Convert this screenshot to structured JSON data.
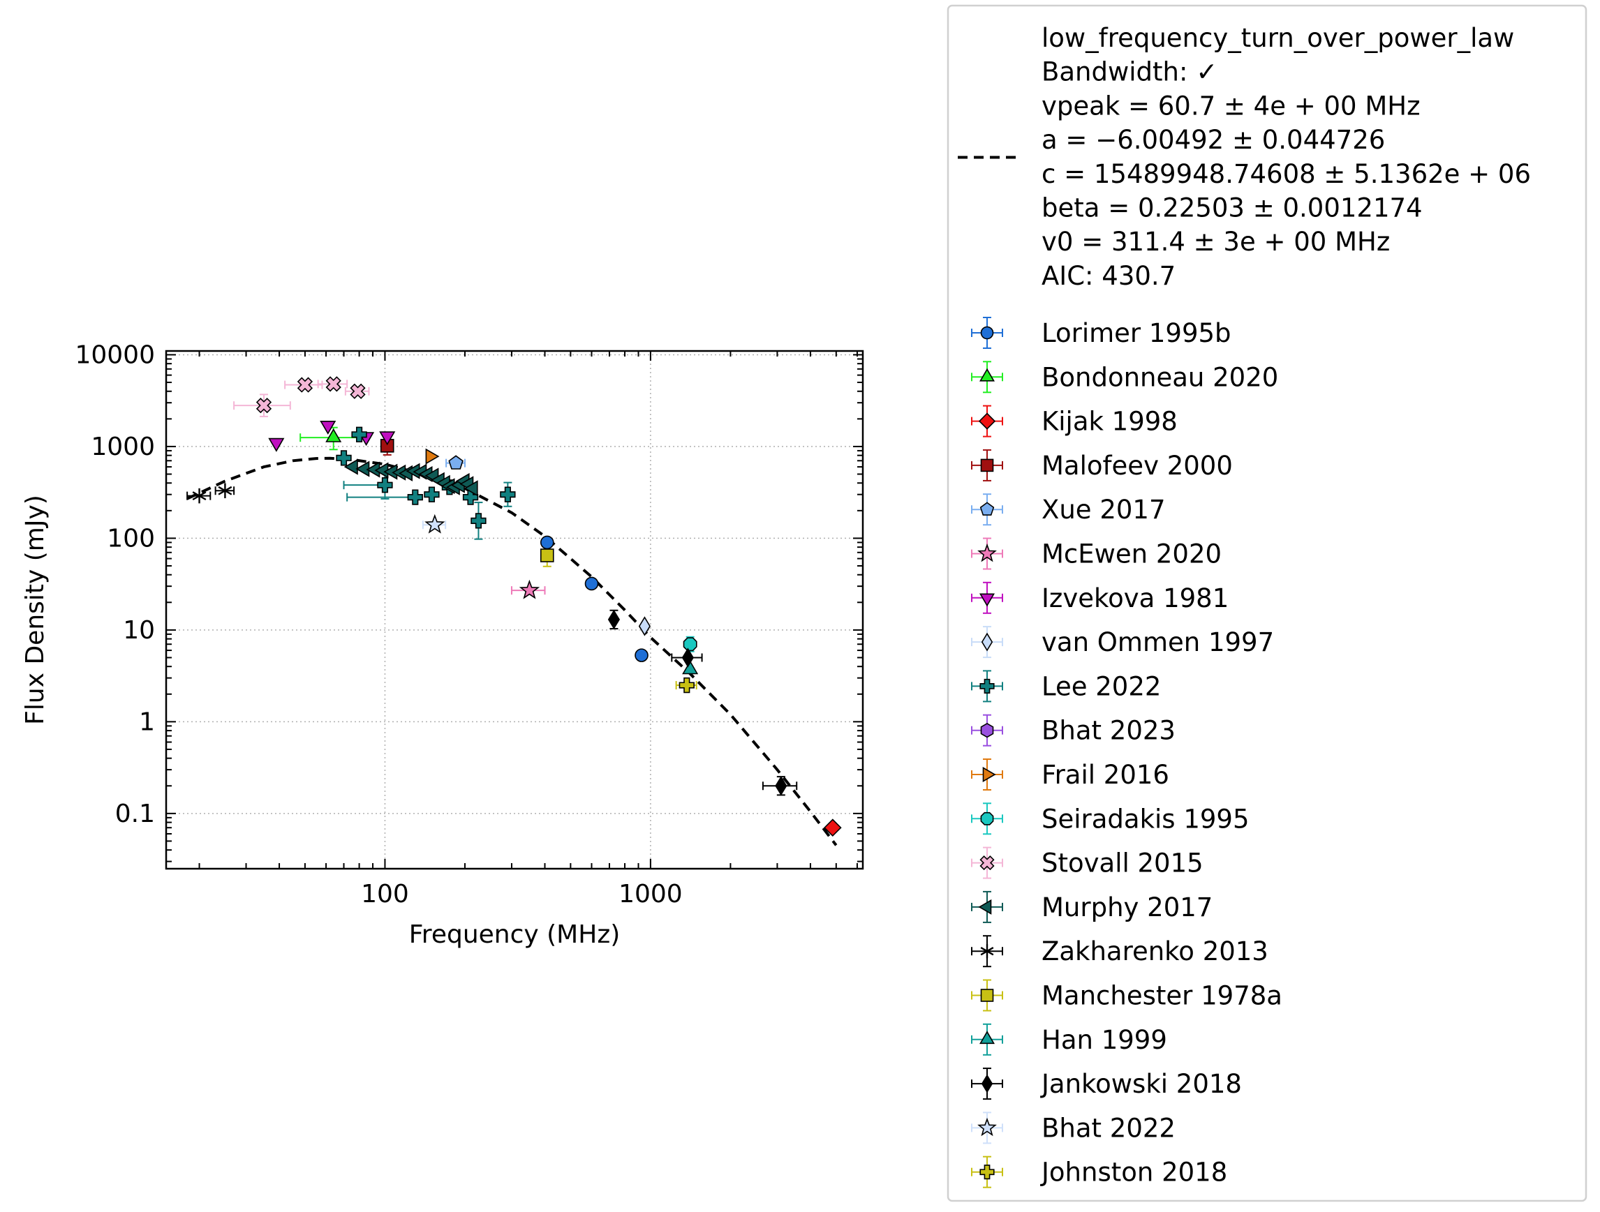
{
  "chart_data": {
    "type": "scatter",
    "title": "",
    "xlabel": "Frequency (MHz)",
    "ylabel": "Flux Density (mJy)",
    "xscale": "log",
    "yscale": "log",
    "xlim": [
      15,
      6300
    ],
    "ylim": [
      0.025,
      11000
    ],
    "xticks": [
      {
        "value": 100,
        "label": "100"
      },
      {
        "value": 1000,
        "label": "1000"
      }
    ],
    "yticks": [
      {
        "value": 0.1,
        "label": "0.1"
      },
      {
        "value": 1,
        "label": "1"
      },
      {
        "value": 10,
        "label": "10"
      },
      {
        "value": 100,
        "label": "100"
      },
      {
        "value": 1000,
        "label": "1000"
      },
      {
        "value": 10000,
        "label": "10000"
      }
    ],
    "grid": true,
    "legend_position": "outside-right",
    "fit": {
      "name": "low_frequency_turn_over_power_law",
      "legend_lines": [
        "low_frequency_turn_over_power_law",
        "Bandwidth: ✓",
        "vpeak = 60.7 ± 4e + 00 MHz",
        "a = −6.00492 ± 0.044726",
        "c = 15489948.74608 ± 5.1362e + 06",
        "beta = 0.22503 ± 0.0012174",
        "v0 = 311.4 ± 3e + 00 MHz",
        "AIC: 430.7"
      ],
      "color": "#000000",
      "style": "dashed",
      "x": [
        18,
        25,
        35,
        45,
        55,
        62,
        75,
        100,
        150,
        200,
        300,
        400,
        600,
        800,
        1000,
        1400,
        2000,
        3000,
        4000,
        5000
      ],
      "y": [
        270,
        420,
        600,
        700,
        740,
        745,
        720,
        640,
        470,
        350,
        190,
        105,
        38,
        16.5,
        8.3,
        3.4,
        1.2,
        0.3,
        0.105,
        0.045
      ]
    },
    "series": [
      {
        "name": "Lorimer 1995b",
        "marker": "circle",
        "color": "#1f6fd6",
        "points": [
          {
            "x": 408,
            "y": 90
          },
          {
            "x": 600,
            "y": 32
          },
          {
            "x": 925,
            "y": 5.3
          }
        ]
      },
      {
        "name": "Bondonneau 2020",
        "marker": "triangle-up",
        "color": "#22ee22",
        "points": [
          {
            "x": 64,
            "y": 1250,
            "xerr": [
              16,
              16
            ],
            "yerr": [
              0.13,
              0.11
            ]
          }
        ]
      },
      {
        "name": "Kijak 1998",
        "marker": "diamond",
        "color": "#ee1111",
        "points": [
          {
            "x": 4850,
            "y": 0.07
          }
        ]
      },
      {
        "name": "Malofeev 2000",
        "marker": "square",
        "color": "#a01010",
        "points": [
          {
            "x": 102,
            "y": 1020,
            "yerr": [
              0.1,
              0.1
            ]
          }
        ]
      },
      {
        "name": "Xue 2017",
        "marker": "pentagon",
        "color": "#7aaef0",
        "points": [
          {
            "x": 185,
            "y": 660,
            "xerr": [
              15,
              15
            ]
          }
        ]
      },
      {
        "name": "McEwen 2020",
        "marker": "star",
        "color": "#ee7ab8",
        "points": [
          {
            "x": 350,
            "y": 27,
            "xerr": [
              50,
              50
            ]
          }
        ]
      },
      {
        "name": "Izvekova 1981",
        "marker": "triangle-down",
        "color": "#c010c0",
        "points": [
          {
            "x": 39,
            "y": 1100
          },
          {
            "x": 61,
            "y": 1700
          },
          {
            "x": 85,
            "y": 1280
          },
          {
            "x": 102,
            "y": 1300
          }
        ]
      },
      {
        "name": "van Ommen 1997",
        "marker": "thin-diamond",
        "color": "#c8dcf8",
        "points": [
          {
            "x": 950,
            "y": 11
          }
        ]
      },
      {
        "name": "Lee 2022",
        "marker": "plus",
        "color": "#118080",
        "points": [
          {
            "x": 70,
            "y": 750
          },
          {
            "x": 80,
            "y": 1350
          },
          {
            "x": 100,
            "y": 380,
            "xerr": [
              30,
              2
            ],
            "yerr": [
              0.15,
              0.15
            ]
          },
          {
            "x": 130,
            "y": 280,
            "xerr": [
              58,
              2
            ]
          },
          {
            "x": 150,
            "y": 300
          },
          {
            "x": 175,
            "y": 360
          },
          {
            "x": 210,
            "y": 280
          },
          {
            "x": 225,
            "y": 155,
            "yerr": [
              0.2,
              0.2
            ]
          },
          {
            "x": 290,
            "y": 300,
            "yerr": [
              0.13,
              0.13
            ]
          }
        ]
      },
      {
        "name": "Bhat 2023",
        "marker": "hexagon",
        "color": "#9a50e0",
        "points": []
      },
      {
        "name": "Frail 2016",
        "marker": "triangle-right",
        "color": "#e07a10",
        "points": [
          {
            "x": 148,
            "y": 780
          }
        ]
      },
      {
        "name": "Seiradakis 1995",
        "marker": "octagon",
        "color": "#1ac8c0",
        "points": [
          {
            "x": 1410,
            "y": 7,
            "yerr": [
              0.08,
              0.08
            ]
          }
        ]
      },
      {
        "name": "Stovall 2015",
        "marker": "x-filled",
        "color": "#f4b6d6",
        "points": [
          {
            "x": 35,
            "y": 2800,
            "xerr": [
              8,
              9
            ],
            "yerr": [
              0.12,
              0.12
            ]
          },
          {
            "x": 50,
            "y": 4700,
            "xerr": [
              8,
              8
            ]
          },
          {
            "x": 64,
            "y": 4800,
            "xerr": [
              8,
              8
            ]
          },
          {
            "x": 79,
            "y": 4000,
            "xerr": [
              8,
              8
            ]
          }
        ]
      },
      {
        "name": "Murphy 2017",
        "marker": "triangle-left",
        "color": "#0f5a55",
        "points": [
          {
            "x": 76,
            "y": 600
          },
          {
            "x": 84,
            "y": 570
          },
          {
            "x": 92,
            "y": 560
          },
          {
            "x": 99,
            "y": 550
          },
          {
            "x": 107,
            "y": 530
          },
          {
            "x": 115,
            "y": 520
          },
          {
            "x": 122,
            "y": 510
          },
          {
            "x": 130,
            "y": 540
          },
          {
            "x": 138,
            "y": 530
          },
          {
            "x": 145,
            "y": 500
          },
          {
            "x": 153,
            "y": 480
          },
          {
            "x": 161,
            "y": 430
          },
          {
            "x": 169,
            "y": 400
          },
          {
            "x": 176,
            "y": 370
          },
          {
            "x": 184,
            "y": 360
          },
          {
            "x": 192,
            "y": 380
          },
          {
            "x": 200,
            "y": 420
          },
          {
            "x": 207,
            "y": 390
          },
          {
            "x": 215,
            "y": 350
          }
        ]
      },
      {
        "name": "Zakharenko 2013",
        "marker": "asterisk",
        "color": "#000000",
        "points": [
          {
            "x": 20,
            "y": 290,
            "xerr": [
              2,
              2
            ]
          },
          {
            "x": 25,
            "y": 330,
            "xerr": [
              2,
              2
            ]
          }
        ]
      },
      {
        "name": "Manchester 1978a",
        "marker": "square",
        "color": "#c8c014",
        "points": [
          {
            "x": 408,
            "y": 65,
            "yerr": [
              0.12,
              0.12
            ]
          }
        ]
      },
      {
        "name": "Han 1999",
        "marker": "triangle-up",
        "color": "#12a09a",
        "points": [
          {
            "x": 1410,
            "y": 3.7
          }
        ]
      },
      {
        "name": "Jankowski 2018",
        "marker": "thin-diamond",
        "color": "#000000",
        "points": [
          {
            "x": 728,
            "y": 13,
            "yerr": [
              0.1,
              0.1
            ]
          },
          {
            "x": 1382,
            "y": 5.0,
            "xerr": [
              180,
              180
            ]
          },
          {
            "x": 3100,
            "y": 0.2,
            "xerr": [
              450,
              450
            ],
            "yerr": [
              0.1,
              0.1
            ]
          }
        ]
      },
      {
        "name": "Bhat 2022",
        "marker": "star",
        "color": "#cfe0fa",
        "points": [
          {
            "x": 154,
            "y": 140,
            "xerr": [
              15,
              15
            ]
          }
        ]
      },
      {
        "name": "Johnston 2018",
        "marker": "plus",
        "color": "#c8c014",
        "points": [
          {
            "x": 1369,
            "y": 2.5,
            "xerr": [
              120,
              120
            ]
          }
        ]
      }
    ]
  }
}
